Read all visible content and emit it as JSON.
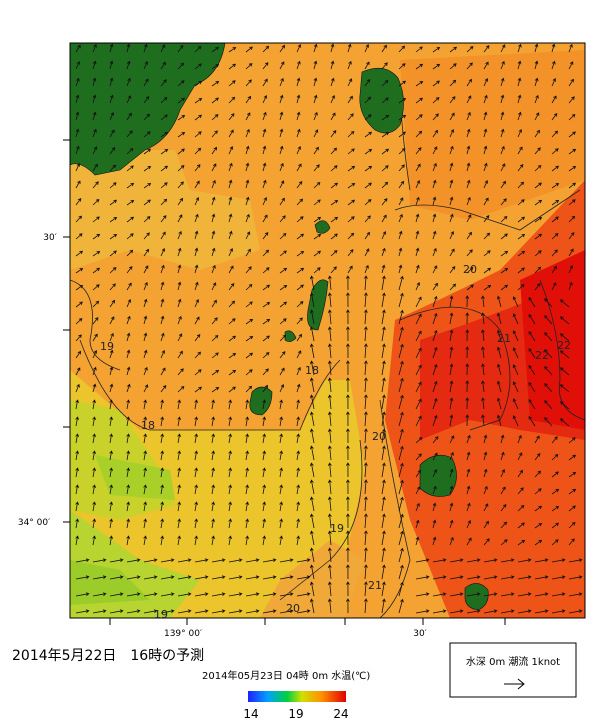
{
  "map": {
    "axis_labels": {
      "left": [
        "30′",
        "34° 00′"
      ],
      "bottom": [
        "139° 00′",
        "30′"
      ]
    },
    "contour_labels": [
      "18",
      "18",
      "19",
      "19",
      "19",
      "20",
      "20",
      "20",
      "21",
      "21",
      "22",
      "22"
    ],
    "title": "2014年5月22日　16時の予測",
    "subtitle": "2014年05月23日 04時 0m 水温(℃)",
    "colorbar": {
      "labels": [
        14,
        19,
        24
      ]
    },
    "legend": {
      "text": "水深 0m 潮流 1knot"
    }
  }
}
